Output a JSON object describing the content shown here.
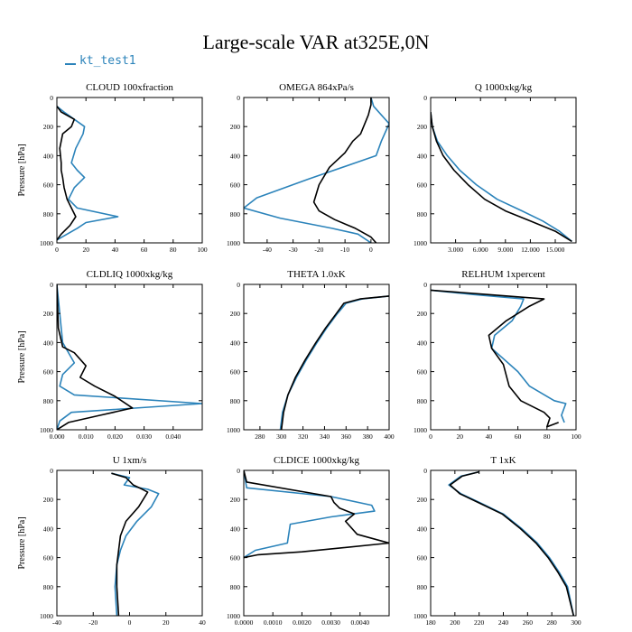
{
  "title": "Large-scale VAR at325E,0N",
  "legend": {
    "label": "kt_test1"
  },
  "colors": {
    "kt_test1": "#2b83ba",
    "second_series": "#000000"
  },
  "chart_data": [
    {
      "type": "line",
      "title": "CLOUD 100xfraction",
      "ylabel": "Pressure [hPa]",
      "xlim": [
        0,
        100
      ],
      "ylim": [
        1000,
        0
      ],
      "xticks": [
        0,
        20,
        40,
        60,
        80,
        100
      ],
      "xtick_labels": [
        "0",
        "20",
        "40",
        "60",
        "80",
        "100"
      ],
      "yticks": [
        0,
        200,
        400,
        600,
        800,
        1000
      ],
      "ytick_labels": [
        "0",
        "200",
        "400",
        "600",
        "800",
        "1000"
      ],
      "series": [
        {
          "name": "kt_test1",
          "x": [
            0,
            5,
            12,
            19,
            18,
            13,
            10,
            14,
            19,
            12,
            8,
            14,
            42,
            20,
            14,
            0
          ],
          "y": [
            60,
            100,
            150,
            200,
            250,
            350,
            450,
            500,
            550,
            620,
            700,
            760,
            820,
            860,
            900,
            980
          ]
        },
        {
          "name": "",
          "x": [
            0,
            3,
            12,
            10,
            4,
            2,
            3,
            3,
            4,
            5,
            7,
            10,
            13,
            9,
            3,
            0
          ],
          "y": [
            60,
            100,
            150,
            200,
            250,
            350,
            450,
            500,
            550,
            620,
            700,
            760,
            820,
            880,
            940,
            980
          ]
        }
      ]
    },
    {
      "type": "line",
      "title": "OMEGA 864xPa/s",
      "ylabel": "",
      "xlim": [
        -49,
        7
      ],
      "ylim": [
        1000,
        0
      ],
      "xticks": [
        -40,
        -30,
        -20,
        -10,
        0
      ],
      "xtick_labels": [
        "-40",
        "-30",
        "-20",
        "-10",
        "0"
      ],
      "yticks": [
        0,
        200,
        400,
        600,
        800,
        1000
      ],
      "ytick_labels": [
        "0",
        "200",
        "400",
        "600",
        "800",
        "1000"
      ],
      "series": [
        {
          "name": "kt_test1",
          "x": [
            0,
            1,
            7,
            4,
            2,
            -6,
            -24,
            -44,
            -49,
            -35,
            -15,
            -5,
            0
          ],
          "y": [
            0,
            60,
            180,
            300,
            400,
            450,
            560,
            690,
            760,
            830,
            900,
            940,
            1000
          ]
        },
        {
          "name": "",
          "x": [
            0,
            0,
            -1,
            -4,
            -7,
            -10,
            -16,
            -20,
            -22,
            -20,
            -14,
            -6,
            0,
            2
          ],
          "y": [
            0,
            50,
            120,
            250,
            300,
            380,
            480,
            600,
            720,
            780,
            840,
            900,
            960,
            1000
          ]
        }
      ]
    },
    {
      "type": "line",
      "title": "Q 1000xkg/kg",
      "ylabel": "",
      "xlim": [
        0,
        17500
      ],
      "ylim": [
        1000,
        0
      ],
      "xticks": [
        3000,
        6000,
        9000,
        12000,
        15000
      ],
      "xtick_labels": [
        "3.000",
        "6.000",
        "9.000",
        "12.000",
        "15.000"
      ],
      "yticks": [
        0,
        200,
        400,
        600,
        800,
        1000
      ],
      "ytick_labels": [
        "0",
        "200",
        "400",
        "600",
        "800",
        "1000"
      ],
      "series": [
        {
          "name": "kt_test1",
          "x": [
            0,
            200,
            800,
            2000,
            3500,
            5500,
            8000,
            11000,
            13500,
            15500,
            17000
          ],
          "y": [
            100,
            200,
            300,
            400,
            500,
            600,
            700,
            780,
            850,
            920,
            990
          ]
        },
        {
          "name": "",
          "x": [
            0,
            200,
            700,
            1500,
            2800,
            4500,
            6500,
            9000,
            12000,
            15000,
            17000
          ],
          "y": [
            100,
            200,
            300,
            400,
            500,
            600,
            700,
            780,
            850,
            920,
            990
          ]
        }
      ]
    },
    {
      "type": "line",
      "title": "CLDLIQ 1000xkg/kg",
      "ylabel": "Pressure [hPa]",
      "xlim": [
        0,
        0.05
      ],
      "ylim": [
        1000,
        0
      ],
      "xticks": [
        0,
        0.01,
        0.02,
        0.03,
        0.04
      ],
      "xtick_labels": [
        "0.000",
        "0.010",
        "0.020",
        "0.030",
        "0.040"
      ],
      "yticks": [
        0,
        200,
        400,
        600,
        800,
        1000
      ],
      "ytick_labels": [
        "0",
        "200",
        "400",
        "600",
        "800",
        "1000"
      ],
      "series": [
        {
          "name": "kt_test1",
          "x": [
            0,
            0.001,
            0.002,
            0.006,
            0.002,
            0.001,
            0.006,
            0.05,
            0.005,
            0.001,
            0
          ],
          "y": [
            0,
            200,
            400,
            540,
            620,
            700,
            760,
            820,
            880,
            940,
            1000
          ]
        },
        {
          "name": "",
          "x": [
            0,
            0.0005,
            0.002,
            0.006,
            0.01,
            0.008,
            0.013,
            0.02,
            0.026,
            0.015,
            0.004,
            0
          ],
          "y": [
            0,
            300,
            430,
            470,
            560,
            640,
            700,
            770,
            850,
            900,
            950,
            1000
          ]
        }
      ]
    },
    {
      "type": "line",
      "title": "THETA 1.0xK",
      "ylabel": "",
      "xlim": [
        265,
        400
      ],
      "ylim": [
        1000,
        0
      ],
      "xticks": [
        280,
        300,
        320,
        340,
        360,
        380,
        400
      ],
      "xtick_labels": [
        "280",
        "300",
        "320",
        "340",
        "360",
        "380",
        "400"
      ],
      "yticks": [
        0,
        200,
        400,
        600,
        800,
        1000
      ],
      "ytick_labels": [
        "0",
        "200",
        "400",
        "600",
        "800",
        "1000"
      ],
      "series": [
        {
          "name": "kt_test1",
          "x": [
            400,
            375,
            360,
            352,
            342,
            333,
            323,
            314,
            306,
            301,
            299
          ],
          "y": [
            80,
            100,
            130,
            200,
            300,
            400,
            520,
            640,
            760,
            880,
            1000
          ]
        },
        {
          "name": "",
          "x": [
            400,
            373,
            358,
            351,
            341,
            332,
            322,
            313,
            306,
            302,
            300
          ],
          "y": [
            80,
            100,
            130,
            200,
            300,
            400,
            520,
            640,
            760,
            880,
            1000
          ]
        }
      ]
    },
    {
      "type": "line",
      "title": "RELHUM 1xpercent",
      "ylabel": "",
      "xlim": [
        0,
        100
      ],
      "ylim": [
        1000,
        0
      ],
      "xticks": [
        0,
        20,
        40,
        60,
        80,
        100
      ],
      "xtick_labels": [
        "0",
        "20",
        "40",
        "60",
        "80",
        "100"
      ],
      "yticks": [
        0,
        200,
        400,
        600,
        800,
        1000
      ],
      "ytick_labels": [
        "0",
        "200",
        "400",
        "600",
        "800",
        "1000"
      ],
      "series": [
        {
          "name": "kt_test1",
          "x": [
            0,
            30,
            64,
            62,
            56,
            44,
            42,
            60,
            68,
            85,
            93,
            90,
            92
          ],
          "y": [
            40,
            70,
            100,
            150,
            250,
            350,
            440,
            600,
            700,
            800,
            820,
            900,
            950
          ]
        },
        {
          "name": "",
          "x": [
            0,
            40,
            78,
            68,
            52,
            40,
            42,
            50,
            54,
            62,
            78,
            82,
            80,
            88
          ],
          "y": [
            40,
            70,
            100,
            150,
            250,
            350,
            440,
            550,
            700,
            800,
            880,
            920,
            980,
            950
          ]
        }
      ]
    },
    {
      "type": "line",
      "title": "U 1xm/s",
      "ylabel": "Pressure [hPa]",
      "xlim": [
        -40,
        40
      ],
      "ylim": [
        1000,
        0
      ],
      "xticks": [
        -40,
        -20,
        0,
        20,
        40
      ],
      "xtick_labels": [
        "-40",
        "-20",
        "0",
        "20",
        "40"
      ],
      "yticks": [
        0,
        200,
        400,
        600,
        800,
        1000
      ],
      "ytick_labels": [
        "0",
        "200",
        "400",
        "600",
        "800",
        "1000"
      ],
      "series": [
        {
          "name": "kt_test1",
          "x": [
            -10,
            0,
            -3,
            10,
            16,
            12,
            4,
            -2,
            -5,
            -7,
            -8,
            -7
          ],
          "y": [
            20,
            50,
            100,
            130,
            160,
            250,
            350,
            450,
            550,
            650,
            800,
            1000
          ]
        },
        {
          "name": "",
          "x": [
            -10,
            -2,
            2,
            7,
            10,
            5,
            -2,
            -5,
            -6,
            -7,
            -7,
            -6
          ],
          "y": [
            20,
            50,
            100,
            130,
            150,
            250,
            350,
            450,
            550,
            650,
            800,
            1000
          ]
        }
      ]
    },
    {
      "type": "line",
      "title": "CLDICE 1000xkg/kg",
      "ylabel": "",
      "xlim": [
        0,
        0.005
      ],
      "ylim": [
        1000,
        0
      ],
      "xticks": [
        0,
        0.001,
        0.002,
        0.003,
        0.004
      ],
      "xtick_labels": [
        "0.0000",
        "0.0010",
        "0.0020",
        "0.0030",
        "0.0040"
      ],
      "yticks": [
        0,
        200,
        400,
        600,
        800,
        1000
      ],
      "ytick_labels": [
        "0",
        "200",
        "400",
        "600",
        "800",
        "1000"
      ],
      "series": [
        {
          "name": "kt_test1",
          "x": [
            0,
            0.0001,
            0.003,
            0.0044,
            0.0045,
            0.003,
            0.0016,
            0.0015,
            0.0004,
            0
          ],
          "y": [
            0,
            120,
            180,
            240,
            280,
            320,
            370,
            500,
            550,
            600
          ]
        },
        {
          "name": "",
          "x": [
            0,
            0.0001,
            0.003,
            0.0031,
            0.0033,
            0.0038,
            0.0035,
            0.0039,
            0.005,
            0.002,
            0.0005,
            0
          ],
          "y": [
            0,
            80,
            180,
            220,
            260,
            300,
            350,
            440,
            500,
            560,
            580,
            600
          ]
        }
      ]
    },
    {
      "type": "line",
      "title": "T 1xK",
      "ylabel": "",
      "xlim": [
        180,
        300
      ],
      "ylim": [
        1000,
        0
      ],
      "xticks": [
        180,
        200,
        220,
        240,
        260,
        280,
        300
      ],
      "xtick_labels": [
        "180",
        "200",
        "220",
        "240",
        "260",
        "280",
        "300"
      ],
      "yticks": [
        0,
        200,
        400,
        600,
        800,
        1000
      ],
      "ytick_labels": [
        "0",
        "200",
        "400",
        "600",
        "800",
        "1000"
      ],
      "series": [
        {
          "name": "kt_test1",
          "x": [
            220,
            205,
            195,
            205,
            220,
            240,
            255,
            268,
            278,
            286,
            293,
            298
          ],
          "y": [
            10,
            40,
            100,
            160,
            220,
            300,
            400,
            500,
            600,
            700,
            800,
            1000
          ]
        },
        {
          "name": "",
          "x": [
            220,
            206,
            196,
            204,
            219,
            239,
            254,
            267,
            277,
            285,
            292,
            298
          ],
          "y": [
            10,
            40,
            100,
            160,
            220,
            300,
            400,
            500,
            600,
            700,
            800,
            1000
          ]
        }
      ]
    }
  ]
}
